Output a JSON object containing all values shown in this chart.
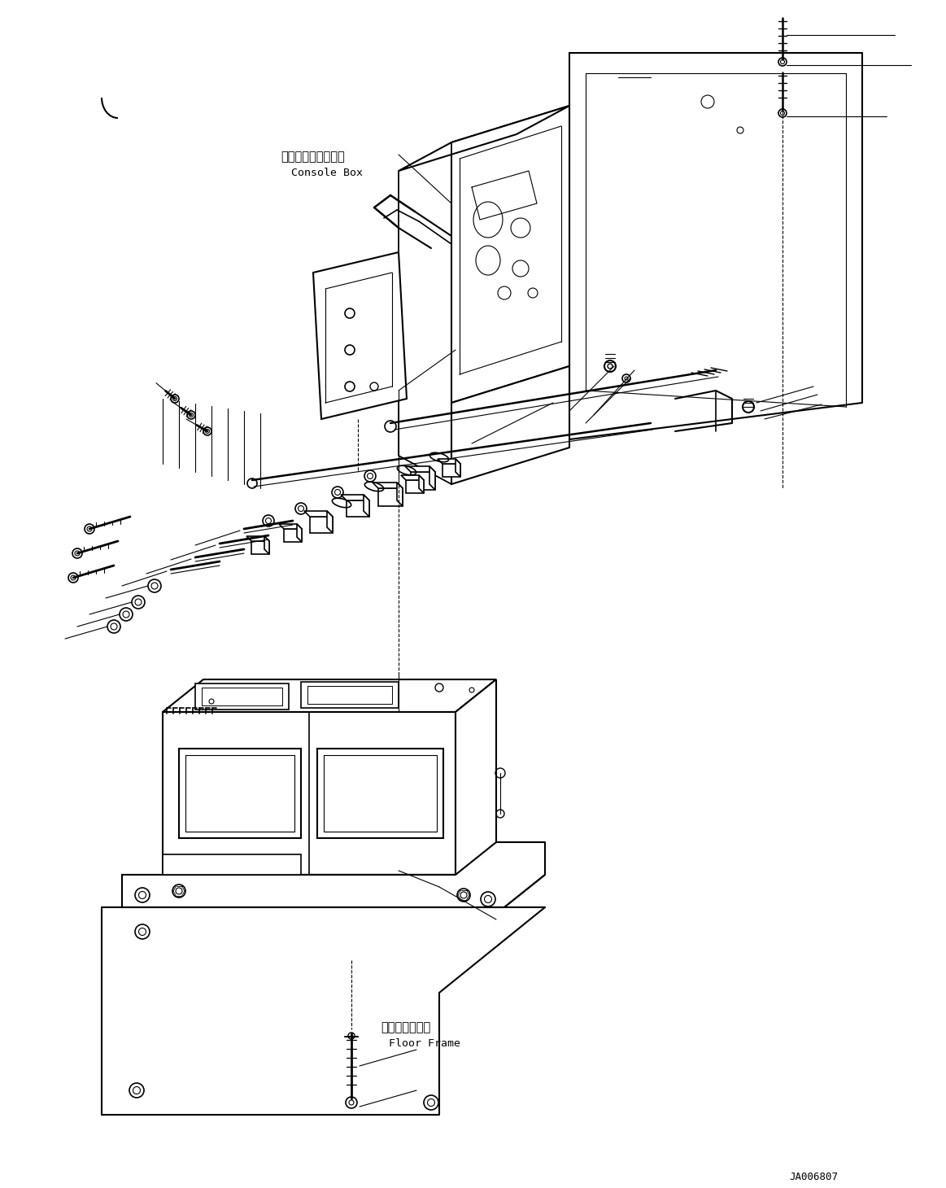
{
  "bg_color": "#ffffff",
  "lc": "#000000",
  "fig_width": 11.63,
  "fig_height": 14.6,
  "dpi": 100,
  "label_console_jp": "コンソールボックス",
  "label_console_en": "Console Box",
  "label_floor_jp": "フロアフレーム",
  "label_floor_en": "Floor Frame",
  "label_code": "JA006807"
}
